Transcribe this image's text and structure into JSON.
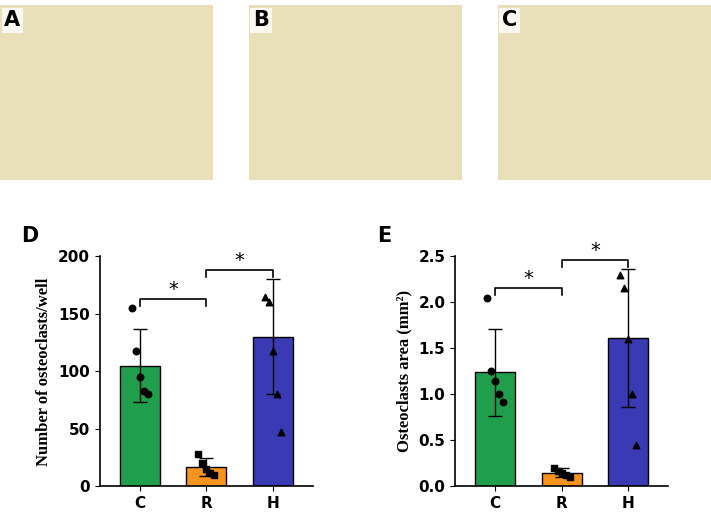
{
  "image_panels": [
    {
      "label": "A"
    },
    {
      "label": "B"
    },
    {
      "label": "C"
    }
  ],
  "chart_data": [
    {
      "type": "bar",
      "title": "D",
      "y_label": "Number of osteoclasts/well",
      "categories": [
        "C",
        "R",
        "H"
      ],
      "values": [
        105,
        17,
        130
      ],
      "errors": [
        32,
        8,
        50
      ],
      "colors": [
        "#1f9e4b",
        "#f7941d",
        "#3a3ab5"
      ],
      "points": [
        {
          "category": "C",
          "marker": "circle",
          "values": [
            155,
            118,
            95,
            83,
            80
          ]
        },
        {
          "category": "R",
          "marker": "square",
          "values": [
            28,
            20,
            15,
            12,
            10
          ]
        },
        {
          "category": "H",
          "marker": "triangle",
          "values": [
            165,
            160,
            118,
            80,
            47
          ]
        }
      ],
      "significance": [
        {
          "from": "C",
          "to": "R",
          "text": "*"
        },
        {
          "from": "R",
          "to": "H",
          "text": "*"
        }
      ],
      "ylim": [
        0,
        200
      ],
      "yticks": [
        0,
        50,
        100,
        150,
        200
      ]
    },
    {
      "type": "bar",
      "title": "E",
      "y_label": "Osteoclasts area (mm²)",
      "categories": [
        "C",
        "R",
        "H"
      ],
      "values": [
        1.24,
        0.15,
        1.61
      ],
      "errors": [
        0.47,
        0.05,
        0.75
      ],
      "colors": [
        "#1f9e4b",
        "#f7941d",
        "#3a3ab5"
      ],
      "points": [
        {
          "category": "C",
          "marker": "circle",
          "values": [
            2.05,
            1.25,
            1.15,
            1.0,
            0.92
          ]
        },
        {
          "category": "R",
          "marker": "square",
          "values": [
            0.2,
            0.17,
            0.15,
            0.12,
            0.1
          ]
        },
        {
          "category": "H",
          "marker": "triangle",
          "values": [
            2.3,
            2.15,
            1.6,
            1.0,
            0.45
          ]
        }
      ],
      "significance": [
        {
          "from": "C",
          "to": "R",
          "text": "*"
        },
        {
          "from": "R",
          "to": "H",
          "text": "*"
        }
      ],
      "ylim": [
        0,
        2.5
      ],
      "yticks": [
        {
          "value": 0,
          "label": "0.0"
        },
        {
          "value": 0.5,
          "label": "0.5"
        },
        {
          "value": 1,
          "label": "1.0"
        },
        {
          "value": 1.5,
          "label": "1.5"
        },
        {
          "value": 2,
          "label": "2.0"
        },
        {
          "value": 2.5,
          "label": "2.5"
        }
      ]
    }
  ]
}
